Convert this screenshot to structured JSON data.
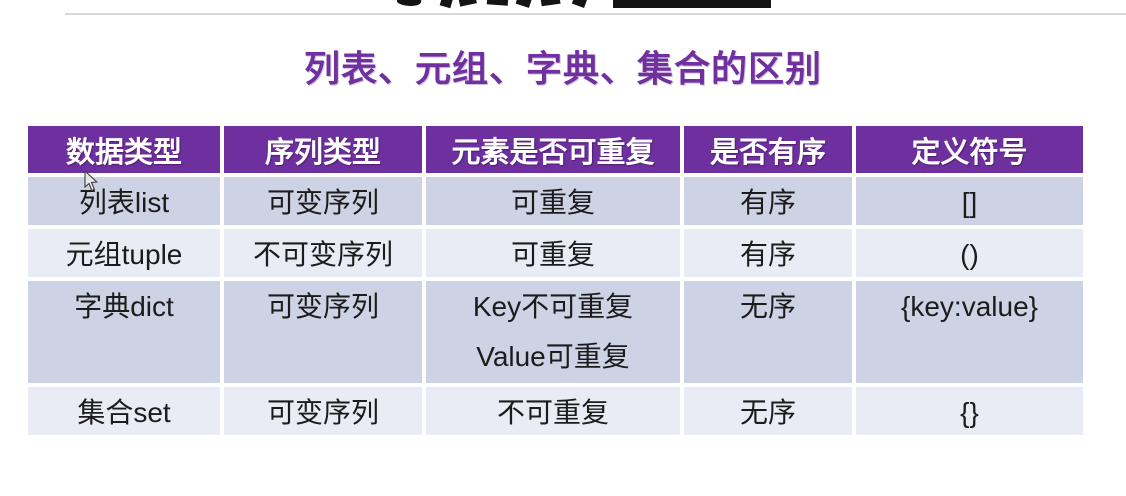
{
  "page": {
    "background": "#ffffff",
    "top_rule_color": "#d8d8d8",
    "cropped_heading": {
      "description": "bottom stroke fragments of a black title cropped by the top edge of the frame"
    }
  },
  "subtitle": {
    "text": "列表、元组、字典、集合的区别",
    "color": "#7030A0"
  },
  "table": {
    "header_bg": "#6E2F9F",
    "row_bg_dark": "#CDD2E4",
    "row_bg_light": "#E9EBF5",
    "text_color": "#1c1c1c",
    "columns": [
      "数据类型",
      "序列类型",
      "元素是否可重复",
      "是否有序",
      "定义符号"
    ],
    "rows": [
      {
        "shade": "dark",
        "cells": [
          [
            "列表list"
          ],
          [
            "可变序列"
          ],
          [
            "可重复"
          ],
          [
            "有序"
          ],
          [
            "[]"
          ]
        ]
      },
      {
        "shade": "light",
        "cells": [
          [
            "元组tuple"
          ],
          [
            "不可变序列"
          ],
          [
            "可重复"
          ],
          [
            "有序"
          ],
          [
            "()"
          ]
        ]
      },
      {
        "shade": "dark",
        "cells": [
          [
            "字典dict"
          ],
          [
            "可变序列"
          ],
          [
            "Key不可重复",
            "Value可重复"
          ],
          [
            "无序"
          ],
          [
            "{key:value}"
          ]
        ]
      },
      {
        "shade": "light",
        "cells": [
          [
            "集合set"
          ],
          [
            "可变序列"
          ],
          [
            "不可重复"
          ],
          [
            "无序"
          ],
          [
            "{}"
          ]
        ]
      }
    ]
  },
  "cursor": {
    "name": "mouse-pointer-arrow"
  }
}
